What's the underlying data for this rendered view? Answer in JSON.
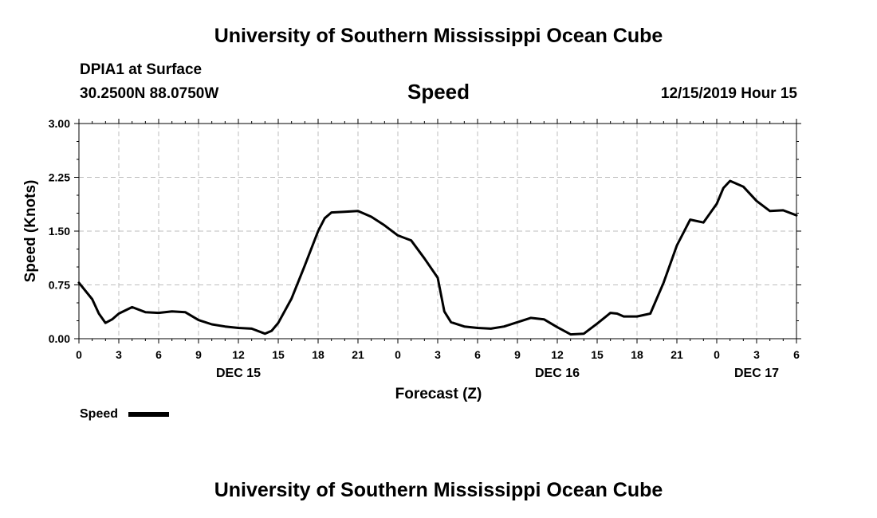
{
  "page": {
    "title_top": "University of Southern Mississippi Ocean Cube",
    "title_bottom": "University of Southern Mississippi Ocean Cube",
    "station": "DPIA1 at Surface",
    "coords": "30.2500N 88.0750W",
    "datetime": "12/15/2019 Hour 15"
  },
  "chart_data": {
    "type": "line",
    "title": "Speed",
    "xlabel": "Forecast (Z)",
    "ylabel": "Speed (Knots)",
    "ylim": [
      0,
      3
    ],
    "xlim": [
      0,
      54
    ],
    "y_ticks": [
      "0.00",
      "0.75",
      "1.50",
      "2.25",
      "3.00"
    ],
    "y_tick_values": [
      0,
      0.75,
      1.5,
      2.25,
      3.0
    ],
    "x_tick_values": [
      0,
      3,
      6,
      9,
      12,
      15,
      18,
      21,
      24,
      27,
      30,
      33,
      36,
      39,
      42,
      45,
      48,
      51,
      54
    ],
    "x_tick_labels": [
      "0",
      "3",
      "6",
      "9",
      "12",
      "15",
      "18",
      "21",
      "0",
      "3",
      "6",
      "9",
      "12",
      "15",
      "18",
      "21",
      "0",
      "3",
      "6"
    ],
    "day_labels": [
      {
        "label": "DEC 15",
        "x": 12
      },
      {
        "label": "DEC 16",
        "x": 36
      },
      {
        "label": "DEC 17",
        "x": 51
      }
    ],
    "grid": true,
    "legend": "bottom-left",
    "series": [
      {
        "name": "Speed",
        "color": "#000000",
        "x": [
          0,
          1,
          1.5,
          2,
          2.5,
          3,
          4,
          5,
          6,
          7,
          8,
          9,
          10,
          11,
          12,
          13,
          14,
          14.5,
          15,
          16,
          17,
          18,
          18.5,
          19,
          20,
          21,
          22,
          23,
          24,
          25,
          26,
          27,
          27.5,
          28,
          29,
          30,
          31,
          32,
          33,
          34,
          35,
          36,
          37,
          38,
          39,
          40,
          40.5,
          41,
          42,
          43,
          44,
          45,
          46,
          47,
          48,
          48.5,
          49,
          50,
          51,
          52,
          53,
          54
        ],
        "y": [
          0.78,
          0.55,
          0.35,
          0.22,
          0.27,
          0.35,
          0.44,
          0.37,
          0.36,
          0.38,
          0.37,
          0.26,
          0.2,
          0.17,
          0.15,
          0.14,
          0.07,
          0.11,
          0.22,
          0.56,
          1.02,
          1.5,
          1.68,
          1.76,
          1.77,
          1.78,
          1.7,
          1.58,
          1.44,
          1.37,
          1.12,
          0.85,
          0.38,
          0.23,
          0.17,
          0.15,
          0.14,
          0.17,
          0.23,
          0.29,
          0.27,
          0.16,
          0.06,
          0.07,
          0.21,
          0.36,
          0.35,
          0.31,
          0.31,
          0.35,
          0.78,
          1.3,
          1.66,
          1.62,
          1.88,
          2.1,
          2.2,
          2.12,
          1.92,
          1.78,
          1.79,
          1.72
        ]
      }
    ]
  }
}
